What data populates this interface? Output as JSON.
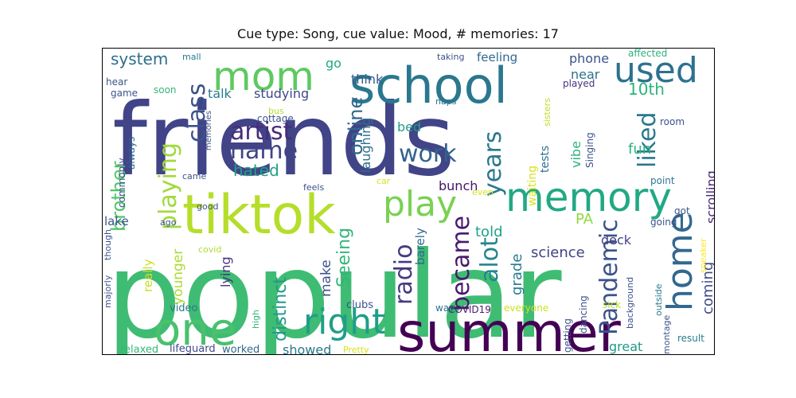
{
  "figure": {
    "title": "Cue type: Song, cue value: Mood, # memories: 17"
  },
  "word_cloud": {
    "words": [
      {
        "text": "popular",
        "color": "#3fbc73"
      },
      {
        "text": "friends",
        "color": "#414487"
      },
      {
        "text": "school",
        "color": "#2a788e"
      },
      {
        "text": "summer",
        "color": "#440154"
      },
      {
        "text": "tiktok",
        "color": "#b5de2b"
      },
      {
        "text": "memory",
        "color": "#22a884"
      },
      {
        "text": "mom",
        "color": "#5ec962"
      },
      {
        "text": "one",
        "color": "#4ac16d"
      },
      {
        "text": "used",
        "color": "#2c728e"
      },
      {
        "text": "home",
        "color": "#31688e"
      },
      {
        "text": "right",
        "color": "#1f9e89"
      },
      {
        "text": "play",
        "color": "#7ad151"
      },
      {
        "text": "class",
        "color": "#3b528b"
      },
      {
        "text": "name",
        "color": "#414487"
      },
      {
        "text": "artist",
        "color": "#472d7b"
      },
      {
        "text": "playing",
        "color": "#a0da39"
      },
      {
        "text": "liked",
        "color": "#2a788e"
      },
      {
        "text": "work",
        "color": "#33638d"
      },
      {
        "text": "became",
        "color": "#481a6c"
      },
      {
        "text": "alot",
        "color": "#25858e"
      },
      {
        "text": "radio",
        "color": "#443a83"
      },
      {
        "text": "Pandemic",
        "color": "#3b528b"
      },
      {
        "text": "years",
        "color": "#2a788e"
      },
      {
        "text": "brother",
        "color": "#52c569"
      },
      {
        "text": "online",
        "color": "#31688e"
      },
      {
        "text": "hated",
        "color": "#1fa188"
      },
      {
        "text": "distinct",
        "color": "#1f9a8a"
      },
      {
        "text": "Seeing",
        "color": "#34b679"
      },
      {
        "text": "10th",
        "color": "#2db27d"
      },
      {
        "text": "system",
        "color": "#2e6e8e"
      },
      {
        "text": "fun",
        "color": "#2db27d"
      },
      {
        "text": "coming",
        "color": "#3e4989"
      },
      {
        "text": "PA",
        "color": "#90d743"
      },
      {
        "text": "grade",
        "color": "#287d8e"
      },
      {
        "text": "science",
        "color": "#424186"
      },
      {
        "text": "told",
        "color": "#20a386"
      },
      {
        "text": "deck",
        "color": "#424086"
      },
      {
        "text": "near",
        "color": "#2c728e"
      },
      {
        "text": "phone",
        "color": "#3b528b"
      },
      {
        "text": "vibe",
        "color": "#2db27d"
      },
      {
        "text": "studying",
        "color": "#3f4788"
      },
      {
        "text": "talk",
        "color": "#287c8e"
      },
      {
        "text": "think",
        "color": "#375a8c"
      },
      {
        "text": "feeling",
        "color": "#31688e"
      },
      {
        "text": "go",
        "color": "#22a884"
      },
      {
        "text": "laughing",
        "color": "#2d718e"
      },
      {
        "text": "bed",
        "color": "#1fa088"
      },
      {
        "text": "bunch",
        "color": "#471365"
      },
      {
        "text": "lake",
        "color": "#3b528b"
      },
      {
        "text": "younger",
        "color": "#addc30"
      },
      {
        "text": "lying",
        "color": "#46337f"
      },
      {
        "text": "make",
        "color": "#3b528b"
      },
      {
        "text": "showed",
        "color": "#2a788e"
      },
      {
        "text": "great",
        "color": "#1f9a8a"
      },
      {
        "text": "scrolling",
        "color": "#482878"
      },
      {
        "text": "really",
        "color": "#c8e020"
      },
      {
        "text": "barely",
        "color": "#31688e"
      },
      {
        "text": "waiting",
        "color": "#d8e219"
      },
      {
        "text": "tests",
        "color": "#2e6e8e"
      },
      {
        "text": "worked",
        "color": "#31688e"
      },
      {
        "text": "lifeguard",
        "color": "#3e4989"
      },
      {
        "text": "relaxed",
        "color": "#35b779"
      },
      {
        "text": "video",
        "color": "#2a788e"
      },
      {
        "text": "clubs",
        "color": "#3b528b"
      },
      {
        "text": "COVID19",
        "color": "#481a6c"
      },
      {
        "text": "way",
        "color": "#2c728e"
      },
      {
        "text": "everyone",
        "color": "#d0e11c"
      },
      {
        "text": "sick",
        "color": "#bddf26"
      },
      {
        "text": "getting",
        "color": "#3b528b"
      },
      {
        "text": "dancing",
        "color": "#3b528b"
      },
      {
        "text": "montage",
        "color": "#3b528b"
      },
      {
        "text": "background",
        "color": "#3b528b"
      },
      {
        "text": "outside",
        "color": "#2a788e"
      },
      {
        "text": "result",
        "color": "#287d8e"
      },
      {
        "text": "speaker",
        "color": "#fde725"
      },
      {
        "text": "got",
        "color": "#3b528b"
      },
      {
        "text": "going",
        "color": "#3b528b"
      },
      {
        "text": "point",
        "color": "#2a788e"
      },
      {
        "text": "room",
        "color": "#3b528b"
      },
      {
        "text": "Singing",
        "color": "#3b528b"
      },
      {
        "text": "sisters",
        "color": "#bddf26"
      },
      {
        "text": "naps",
        "color": "#2c728e"
      },
      {
        "text": "played",
        "color": "#46337f"
      },
      {
        "text": "affected",
        "color": "#2db27d"
      },
      {
        "text": "taking",
        "color": "#3b528b"
      },
      {
        "text": "mall",
        "color": "#2a788e"
      },
      {
        "text": "soon",
        "color": "#35b779"
      },
      {
        "text": "hear",
        "color": "#3b528b"
      },
      {
        "text": "game",
        "color": "#3b528b"
      },
      {
        "text": "memories",
        "color": "#3b528b"
      },
      {
        "text": "always",
        "color": "#31688e"
      },
      {
        "text": "commonly",
        "color": "#3b528b"
      },
      {
        "text": "bus",
        "color": "#b5de2b"
      },
      {
        "text": "cottage",
        "color": "#3b528b"
      },
      {
        "text": "came",
        "color": "#3b528b"
      },
      {
        "text": "feels",
        "color": "#3b528b"
      },
      {
        "text": "car",
        "color": "#d8e219"
      },
      {
        "text": "even",
        "color": "#d8e219"
      },
      {
        "text": "good",
        "color": "#3b528b"
      },
      {
        "text": "ago",
        "color": "#3b528b"
      },
      {
        "text": "covid",
        "color": "#addc30"
      },
      {
        "text": "majorly",
        "color": "#3b528b"
      },
      {
        "text": "though",
        "color": "#3b528b"
      },
      {
        "text": "high",
        "color": "#35b779"
      },
      {
        "text": "Pretty",
        "color": "#d8e219"
      }
    ]
  }
}
